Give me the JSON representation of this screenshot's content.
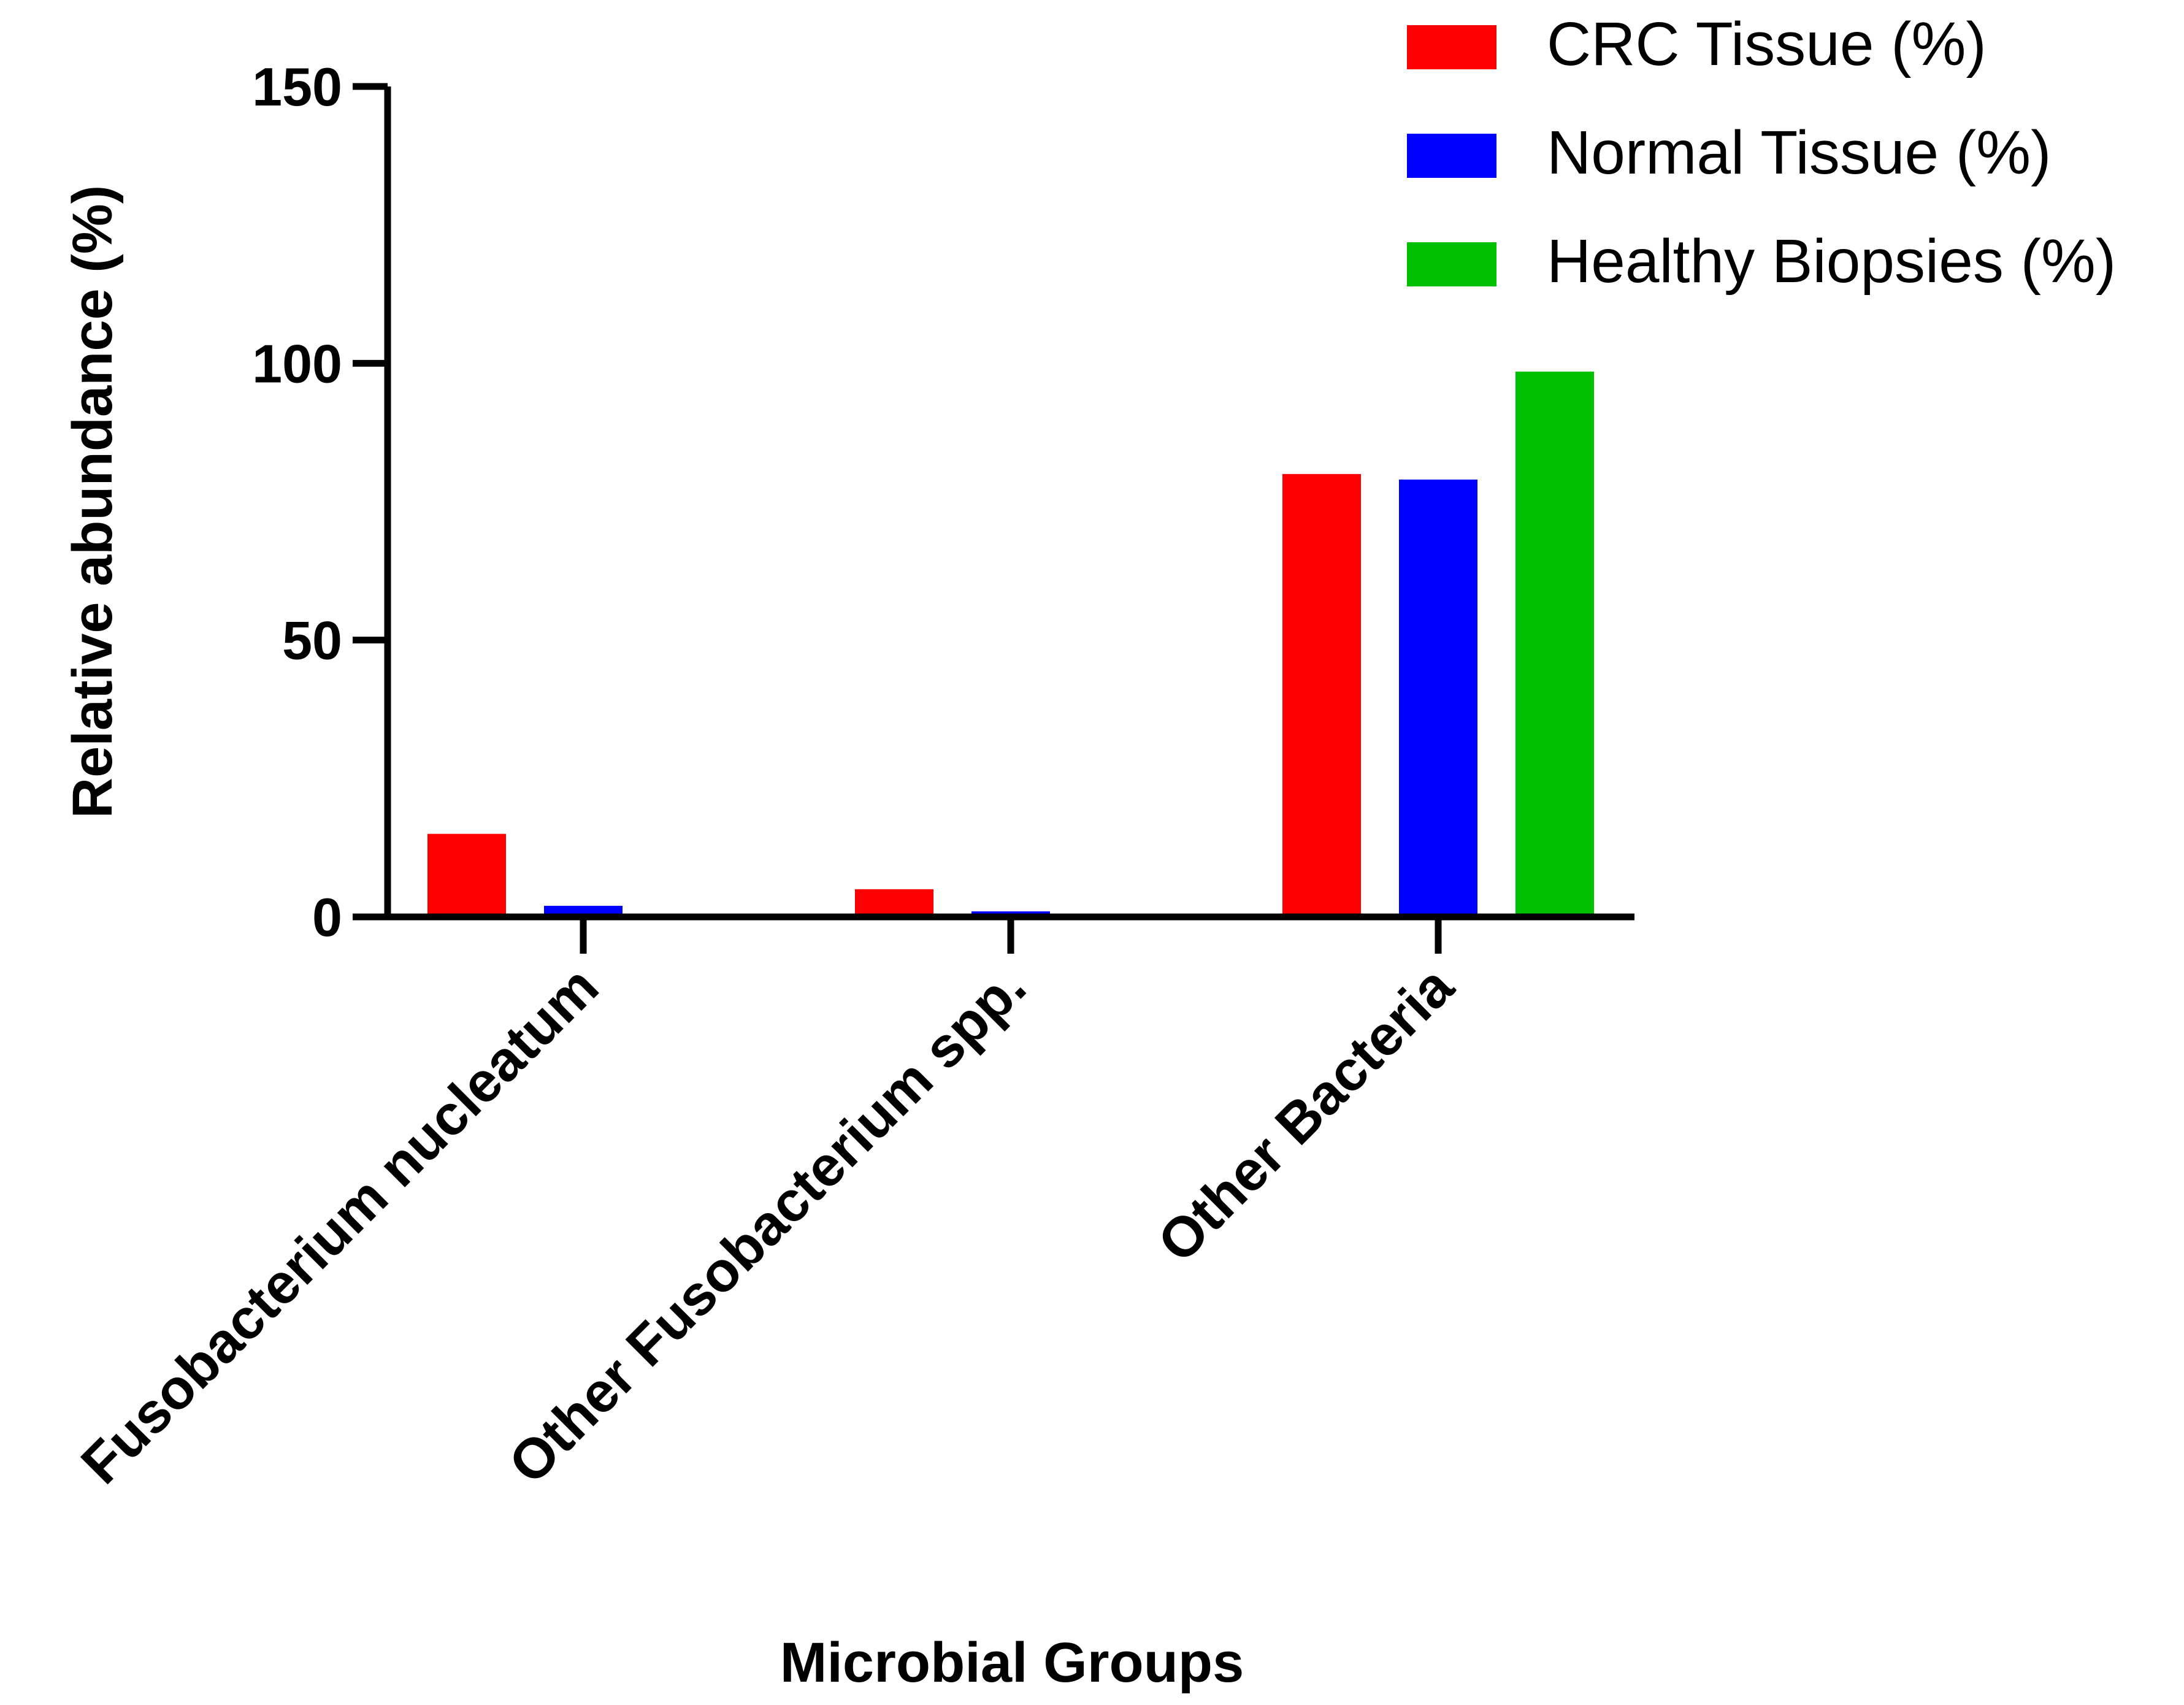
{
  "chart_data": {
    "type": "bar",
    "title": "",
    "xlabel": "Microbial Groups",
    "ylabel": "Relative abundance (%)",
    "ylim": [
      0,
      150
    ],
    "yticks": [
      "0",
      "50",
      "100",
      "150"
    ],
    "categories": [
      "Fusobacterium nucleatum",
      "Other Fusobacterium spp.",
      "Other Bacteria"
    ],
    "series": [
      {
        "name": "CRC Tissue (%)",
        "color": "#ff0000",
        "values": [
          15,
          5,
          80
        ]
      },
      {
        "name": "Normal Tissue (%)",
        "color": "#0000ff",
        "values": [
          2,
          1,
          79
        ]
      },
      {
        "name": "Healthy Biopsies (%)",
        "color": "#00c000",
        "values": [
          0.5,
          0,
          98.5
        ]
      }
    ],
    "legend_position": "top-right",
    "grid": false
  }
}
